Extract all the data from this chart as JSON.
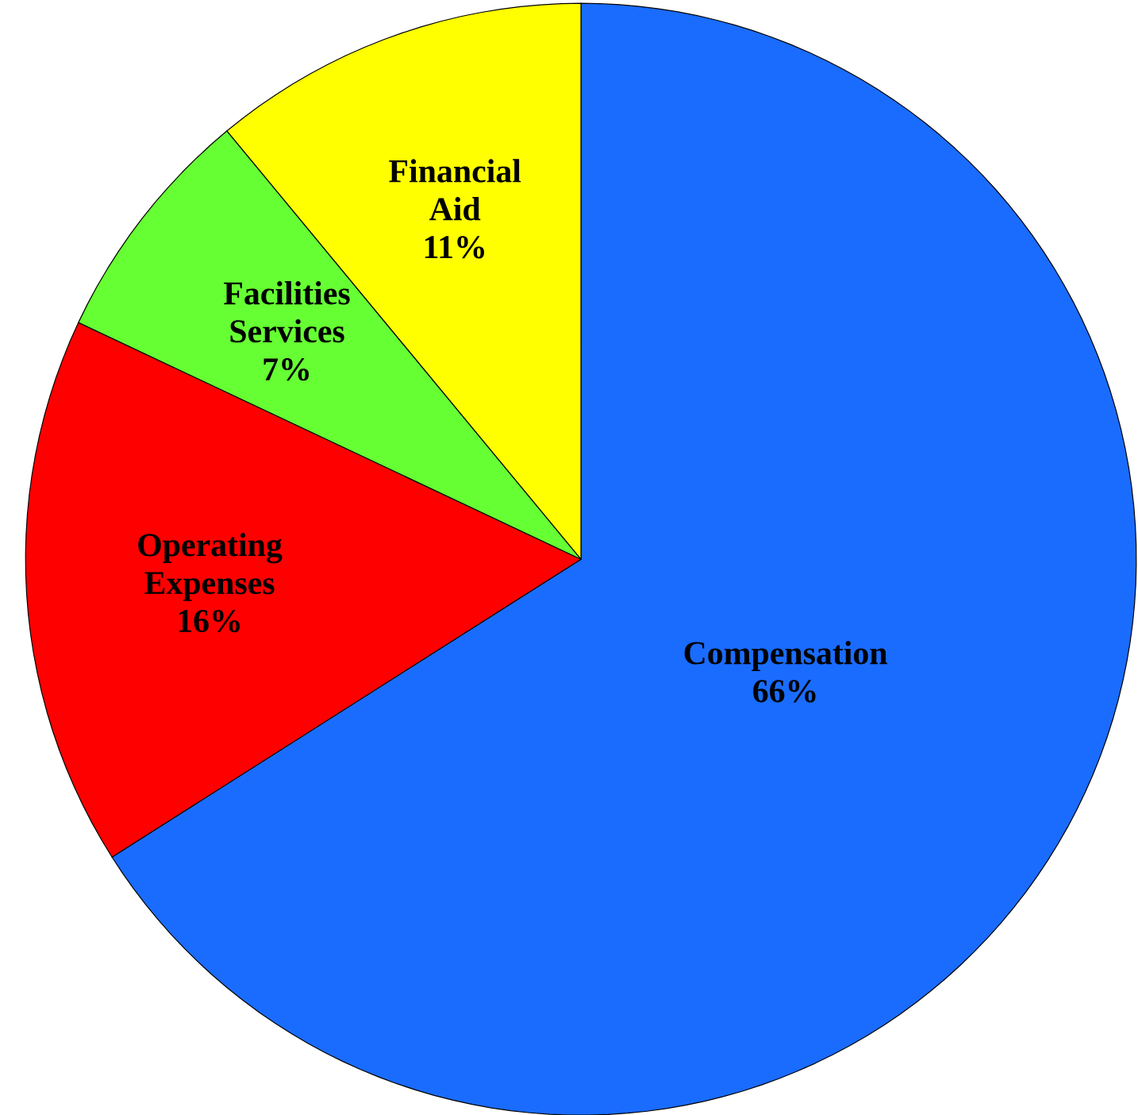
{
  "chart_data": {
    "type": "pie",
    "categories": [
      "Compensation",
      "Operating Expenses",
      "Facilities Services",
      "Financial Aid"
    ],
    "values": [
      66,
      16,
      7,
      11
    ],
    "value_labels": [
      "66%",
      "16%",
      "7%",
      "11%"
    ],
    "colors": [
      "#1a6cff",
      "#ff0000",
      "#66ff33",
      "#ffff00"
    ]
  }
}
